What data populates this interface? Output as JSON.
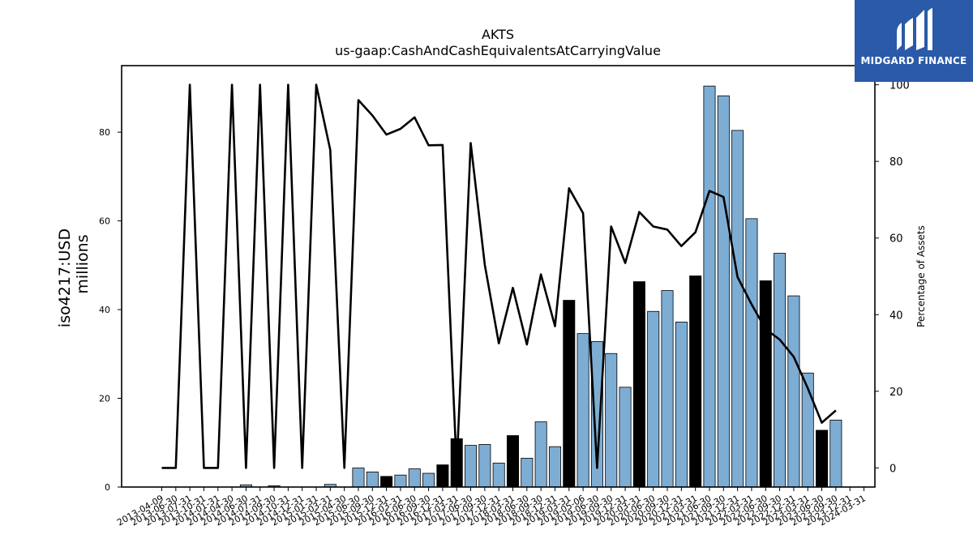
{
  "brand": {
    "name": "MIDGARD FINANCE",
    "bg": "#2a5aa8"
  },
  "chart_data": {
    "type": "bar",
    "title": "AKTS",
    "subtitle": "us-gaap:CashAndCashEquivalentsAtCarryingValue",
    "ylabel": "iso4217:USD",
    "ylabel_unit": "millions",
    "y2label": "Percentage of Assets",
    "ylim": [
      0,
      95
    ],
    "y2lim": [
      -5,
      105
    ],
    "yticks": [
      0,
      20,
      40,
      60,
      80
    ],
    "y2ticks": [
      0,
      20,
      40,
      60,
      80,
      100
    ],
    "grid": false,
    "bar_color_default": "#7eadd4",
    "bar_color_highlight": "#000000",
    "line_color": "#000000",
    "categories": [
      "2013-04-09",
      "2013-06-30",
      "2013-07-31",
      "2013-10-31",
      "2014-01-31",
      "2014-04-30",
      "2014-06-30",
      "2014-07-31",
      "2014-09-30",
      "2014-10-31",
      "2014-12-31",
      "2015-01-31",
      "2015-03-31",
      "2015-04-30",
      "2015-06-30",
      "2015-09-30",
      "2015-12-31",
      "2016-03-31",
      "2016-06-30",
      "2016-09-30",
      "2016-12-31",
      "2017-03-31",
      "2017-06-30",
      "2017-09-30",
      "2017-12-31",
      "2018-03-31",
      "2018-06-30",
      "2018-09-30",
      "2018-12-31",
      "2019-03-31",
      "2019-05-06",
      "2019-06-30",
      "2019-09-30",
      "2019-12-31",
      "2020-03-31",
      "2020-06-30",
      "2020-09-30",
      "2020-12-31",
      "2021-03-31",
      "2021-06-30",
      "2021-09-30",
      "2021-12-31",
      "2022-03-31",
      "2022-06-30",
      "2022-09-30",
      "2022-12-31",
      "2023-03-31",
      "2023-06-30",
      "2023-09-30",
      "2023-12-31",
      "2024-03-31"
    ],
    "tick_labels": [
      "2013-04-09",
      "2013-06-30",
      "2013-07-31",
      "2013-10-31",
      "2014-01-31",
      "2014-04-30",
      "2014-06-30",
      "2014-07-31",
      "2014-09-30",
      "2014-10-31",
      "2014-12-31",
      "2015-01-31",
      "2015-03-31",
      "2015-04-30",
      "2015-06-30",
      "2015-09-30",
      "2015-12-31",
      "2016-03-31",
      "2016-06-30",
      "2016-09-30",
      "2016-12-31",
      "2017-03-31",
      "2017-06-30",
      "2017-09-30",
      "2017-12-31",
      "2018-03-31",
      "2018-06-30",
      "2018-09-30",
      "2018-12-31",
      "2019-03-31",
      "2019-05-06",
      "2019-06-30",
      "2019-09-30",
      "2019-12-31",
      "2020-03-31",
      "2020-06-30",
      "2020-09-30",
      "2020-12-31",
      "2021-03-31",
      "2021-06-30",
      "2021-09-30",
      "2021-12-31",
      "2022-03-31",
      "2022-06-30",
      "2022-09-30",
      "2022-12-31",
      "2023-03-31",
      "2023-06-30",
      "2023-09-30",
      "2023-12-31",
      "2024-03-31"
    ],
    "series": [
      {
        "type": "bar",
        "axis": "left",
        "values": [
          0,
          0,
          0,
          0,
          0,
          0,
          0.5,
          0,
          0.3,
          0,
          0,
          0,
          0.6,
          0,
          4.3,
          3.4,
          2.4,
          2.7,
          4.1,
          3.1,
          5.0,
          10.9,
          9.4,
          9.6,
          5.4,
          11.6,
          6.5,
          14.7,
          9.1,
          42.1,
          34.6,
          32.8,
          30.1,
          22.5,
          46.3,
          39.6,
          44.3,
          37.2,
          47.6,
          90.4,
          88.2,
          80.4,
          60.5,
          46.5,
          52.7,
          43.1,
          25.7,
          12.8,
          15.1,
          null,
          null
        ],
        "highlight": [
          false,
          false,
          false,
          false,
          false,
          false,
          false,
          false,
          false,
          false,
          false,
          false,
          false,
          false,
          false,
          false,
          true,
          false,
          false,
          false,
          true,
          true,
          false,
          false,
          false,
          true,
          false,
          false,
          false,
          true,
          false,
          false,
          false,
          false,
          true,
          false,
          false,
          false,
          true,
          false,
          false,
          false,
          false,
          true,
          false,
          false,
          false,
          true,
          false,
          false,
          false
        ]
      },
      {
        "type": "line",
        "axis": "right",
        "values": [
          0,
          0,
          100,
          0,
          0,
          100,
          0,
          100,
          0,
          100,
          0,
          100,
          83,
          0,
          96,
          92,
          87,
          88.5,
          91.5,
          84.2,
          84.3,
          0,
          84.8,
          53,
          32.5,
          47,
          32.2,
          50.5,
          37,
          73,
          66.5,
          0,
          63,
          53.5,
          66.8,
          63,
          62.2,
          57.9,
          61.5,
          72.3,
          70.7,
          49.8,
          42.7,
          36.2,
          33.5,
          29,
          20.8,
          11.8,
          15,
          null,
          null
        ]
      }
    ]
  }
}
